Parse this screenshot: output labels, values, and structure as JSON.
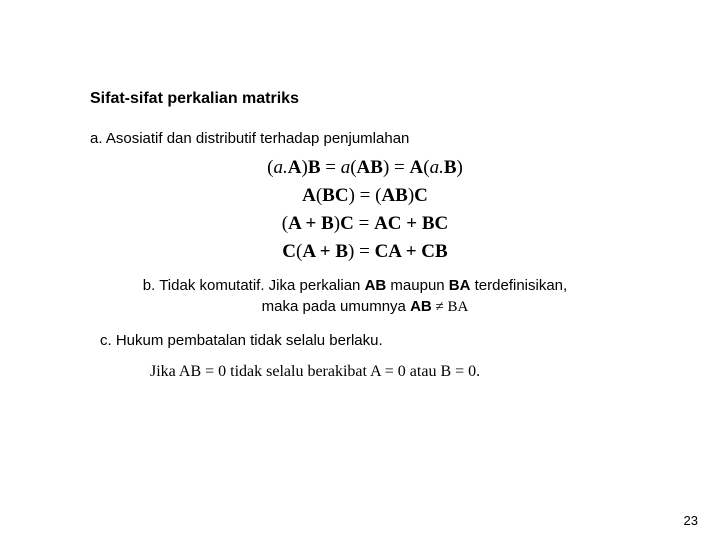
{
  "title": "Sifat-sifat perkalian matriks",
  "item_a": "a. Asosiatif dan distributif terhadap penjumlahan",
  "eq": {
    "e1_l": "(",
    "e1_a": "a.",
    "e1_A": "A",
    "e1_r": ")",
    "e1_B": "B",
    "e1_eq": " = ",
    "e1_a2": "a",
    "e1_l2": "(",
    "e1_AB": "AB",
    "e1_r2": ")",
    "e1_eq2": " = ",
    "e1_A2": "A",
    "e1_l3": "(",
    "e1_a3": "a.",
    "e1_B2": "B",
    "e1_r3": ")",
    "e2_A": "A",
    "e2_l": "(",
    "e2_BC": "BC",
    "e2_r": ")",
    "e2_eq": " = ",
    "e2_l2": "(",
    "e2_AB": "AB",
    "e2_r2": ")",
    "e2_C": "C",
    "e3_l": "(",
    "e3_ApB": "A + B",
    "e3_r": ")",
    "e3_C": "C",
    "e3_eq": " = ",
    "e3_ACpBC": "AC + BC",
    "e4_C": "C",
    "e4_l": "(",
    "e4_ApB": "A + B",
    "e4_r": ")",
    "e4_eq": " = ",
    "e4_CApCB": "CA + CB"
  },
  "item_b_pre": "b. Tidak komutatif. Jika perkalian ",
  "item_b_ab": "AB",
  "item_b_mid": " maupun ",
  "item_b_ba": "BA",
  "item_b_post": " terdefinisikan,",
  "item_b2_pre": "maka pada umumnya ",
  "item_b2_ab": "AB",
  "item_b2_ne": " ≠ ",
  "item_b2_ba": "BA",
  "item_c": "c. Hukum pembatalan tidak selalu berlaku.",
  "item_d_pre": "Jika ",
  "item_d_ab": "AB = 0",
  "item_d_mid": "  tidak selalu berakibat  ",
  "item_d_a": "A = 0",
  "item_d_or": " atau ",
  "item_d_b": "B = 0.",
  "page": "23"
}
